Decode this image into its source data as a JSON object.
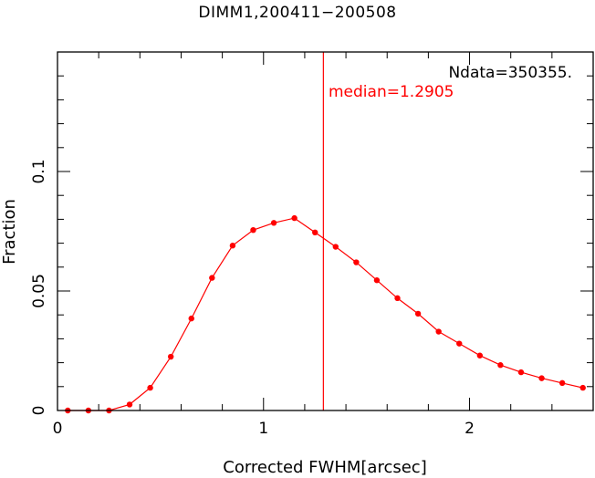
{
  "chart_data": {
    "type": "line",
    "title": "DIMM1,200411−200508",
    "xlabel": "Corrected FWHM[arcsec]",
    "ylabel": "Fraction",
    "xlim": [
      0,
      2.6
    ],
    "ylim": [
      0,
      0.15
    ],
    "x_ticks": [
      0,
      1,
      2
    ],
    "x_tick_labels": [
      "0",
      "1",
      "2"
    ],
    "y_ticks": [
      0,
      0.05,
      0.1
    ],
    "y_tick_labels": [
      "0",
      "0.05",
      "0.1"
    ],
    "grid": false,
    "line_color": "#ff0000",
    "series": [
      {
        "x": [
          0.05,
          0.15,
          0.25,
          0.35,
          0.45,
          0.55,
          0.65,
          0.75,
          0.85,
          0.95,
          1.05,
          1.15,
          1.25,
          1.35,
          1.45,
          1.55,
          1.65,
          1.75,
          1.85,
          1.95,
          2.05,
          2.15,
          2.25,
          2.35,
          2.45,
          2.55
        ],
        "y": [
          0.0,
          0.0,
          0.0,
          0.0025,
          0.0095,
          0.0225,
          0.0385,
          0.0555,
          0.069,
          0.0755,
          0.0785,
          0.0805,
          0.0745,
          0.0685,
          0.062,
          0.0545,
          0.047,
          0.0405,
          0.033,
          0.028,
          0.023,
          0.019,
          0.016,
          0.0135,
          0.0115,
          0.0095
        ]
      }
    ],
    "annotations": {
      "ndata": "Ndata=350355.",
      "median_label": "median=1.2905",
      "median_value": 1.2905
    }
  }
}
